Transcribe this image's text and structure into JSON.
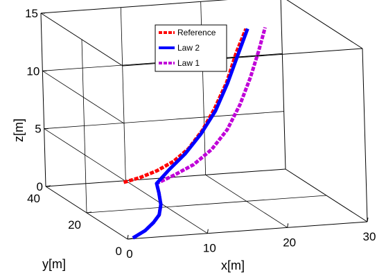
{
  "chart_data": {
    "type": "line",
    "title": "",
    "xlabel": "x[m]",
    "ylabel": "y[m]",
    "zlabel": "z[m]",
    "xlim": [
      0,
      30
    ],
    "ylim": [
      0,
      40
    ],
    "zlim": [
      0,
      15
    ],
    "x_ticks": [
      0,
      10,
      20,
      30
    ],
    "y_ticks": [
      0,
      20,
      40
    ],
    "z_ticks": [
      0,
      5,
      10,
      15
    ],
    "grid": true,
    "box": true,
    "legend_position": "top-center",
    "series": [
      {
        "name": "Reference",
        "color": "#ff0000",
        "style": "dashed",
        "points": [
          {
            "x": 8.5,
            "y": 35,
            "z": 0.5
          },
          {
            "x": 10.5,
            "y": 35,
            "z": 0.8
          },
          {
            "x": 12.7,
            "y": 35,
            "z": 1.3
          },
          {
            "x": 14.8,
            "y": 35,
            "z": 2.0
          },
          {
            "x": 16.7,
            "y": 35,
            "z": 3.0
          },
          {
            "x": 18.5,
            "y": 35,
            "z": 4.5
          },
          {
            "x": 20.1,
            "y": 35,
            "z": 6.3
          },
          {
            "x": 21.7,
            "y": 35,
            "z": 8.5
          },
          {
            "x": 23.0,
            "y": 35,
            "z": 11.0
          },
          {
            "x": 24.3,
            "y": 35,
            "z": 13.0
          }
        ]
      },
      {
        "name": "Law 2",
        "color": "#0000ff",
        "style": "solid",
        "points": [
          {
            "x": 0.8,
            "y": 0.5,
            "z": 0
          },
          {
            "x": 3.5,
            "y": 5,
            "z": 0
          },
          {
            "x": 5.8,
            "y": 10,
            "z": 0
          },
          {
            "x": 7.8,
            "y": 15,
            "z": 0
          },
          {
            "x": 9.8,
            "y": 22,
            "z": 0
          },
          {
            "x": 11.6,
            "y": 30,
            "z": 0
          },
          {
            "x": 12.6,
            "y": 35,
            "z": 0.2
          },
          {
            "x": 14.2,
            "y": 35,
            "z": 1.3
          },
          {
            "x": 16.3,
            "y": 35,
            "z": 2.6
          },
          {
            "x": 18.3,
            "y": 35,
            "z": 4.2
          },
          {
            "x": 20.2,
            "y": 35,
            "z": 6.1
          },
          {
            "x": 21.8,
            "y": 35,
            "z": 8.4
          },
          {
            "x": 23.2,
            "y": 35,
            "z": 10.8
          },
          {
            "x": 24.5,
            "y": 35,
            "z": 13.0
          }
        ]
      },
      {
        "name": "Law 1",
        "color": "#c000d8",
        "style": "dashed",
        "points": [
          {
            "x": 0.8,
            "y": 0.5,
            "z": 0
          },
          {
            "x": 3.5,
            "y": 5,
            "z": 0
          },
          {
            "x": 5.8,
            "y": 10,
            "z": 0
          },
          {
            "x": 7.8,
            "y": 15,
            "z": 0
          },
          {
            "x": 9.8,
            "y": 22,
            "z": 0
          },
          {
            "x": 11.6,
            "y": 30,
            "z": 0
          },
          {
            "x": 12.6,
            "y": 35,
            "z": 0.2
          },
          {
            "x": 14.8,
            "y": 35,
            "z": 0.8
          },
          {
            "x": 17.3,
            "y": 35,
            "z": 1.6
          },
          {
            "x": 19.6,
            "y": 35,
            "z": 2.8
          },
          {
            "x": 21.6,
            "y": 35,
            "z": 4.4
          },
          {
            "x": 23.3,
            "y": 35,
            "z": 6.5
          },
          {
            "x": 24.7,
            "y": 35,
            "z": 8.8
          },
          {
            "x": 25.8,
            "y": 35,
            "z": 11.0
          },
          {
            "x": 26.7,
            "y": 35,
            "z": 13.0
          }
        ]
      }
    ]
  }
}
